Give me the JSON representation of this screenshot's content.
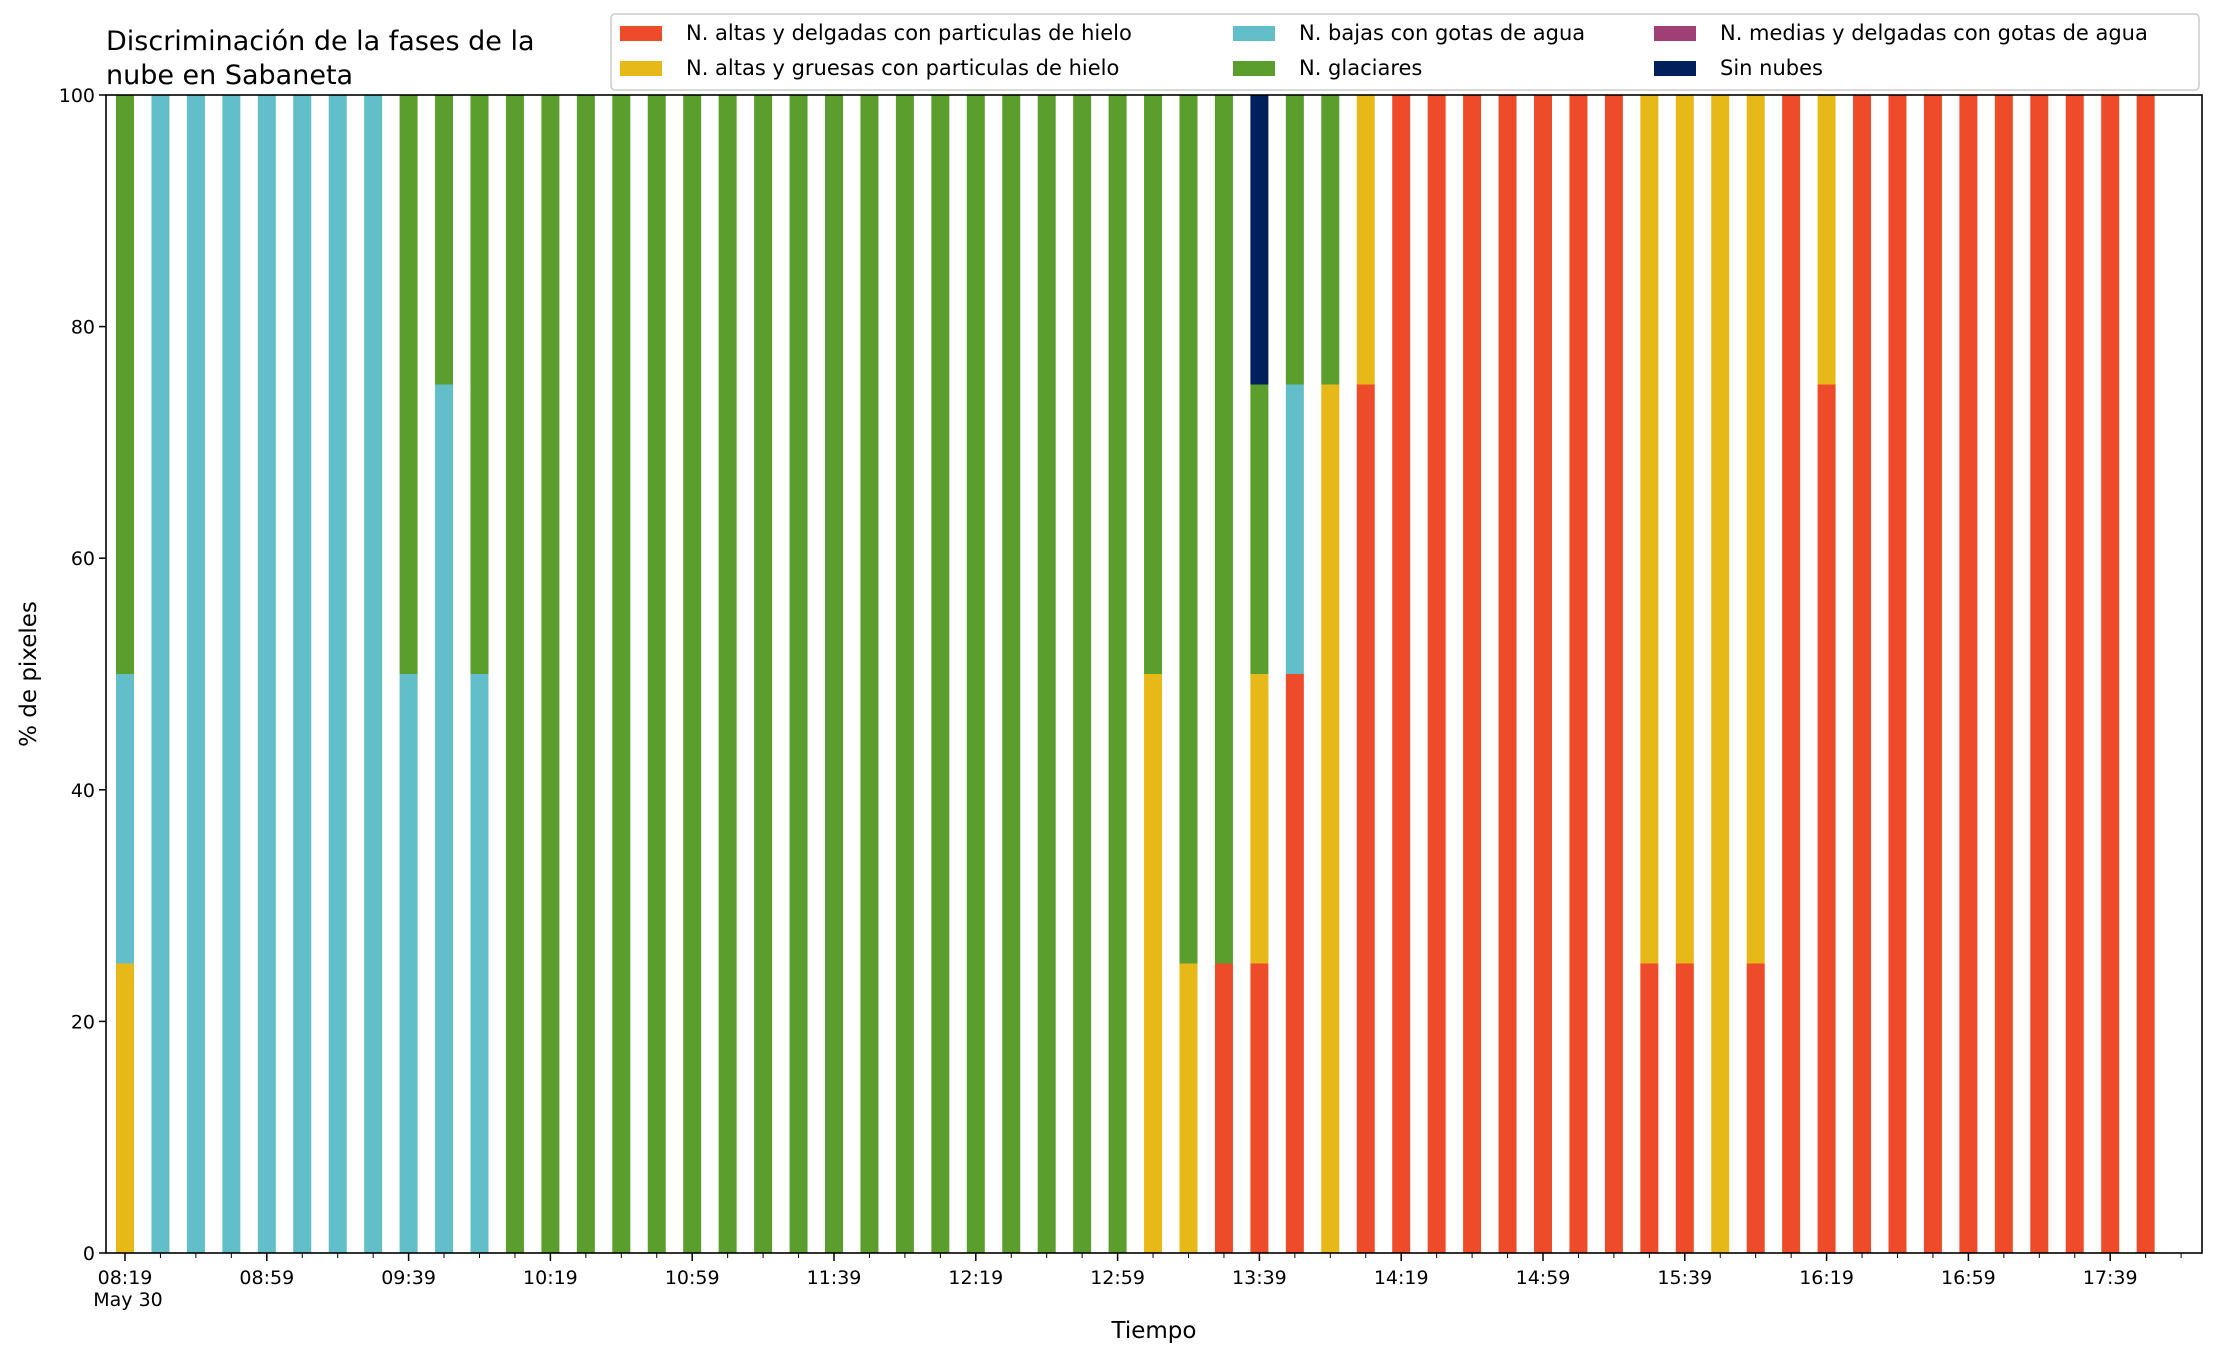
{
  "chart_data": {
    "type": "bar",
    "stacked": true,
    "title_lines": [
      "Discriminación de la fases de la",
      "nube en Sabaneta"
    ],
    "xlabel": "Tiempo",
    "ylabel": "% de pixeles",
    "ylim": [
      0,
      100
    ],
    "yticks": [
      0,
      20,
      40,
      60,
      80,
      100
    ],
    "grid": false,
    "legend_position": "top-right",
    "start_time": "08:19",
    "interval_minutes": 10,
    "x_tick_labels": [
      "08:19",
      "08:59",
      "09:39",
      "10:19",
      "10:59",
      "11:39",
      "12:19",
      "12:59",
      "13:39",
      "14:19",
      "14:59",
      "15:39",
      "16:19",
      "16:59",
      "17:39"
    ],
    "x_date_label": "May 30",
    "legend": [
      {
        "key": "alta_delgada",
        "label": "N. altas y delgadas con particulas de hielo",
        "color": "#ee4b2b"
      },
      {
        "key": "alta_gruesa",
        "label": "N. altas y gruesas con particulas de hielo",
        "color": "#e6b818"
      },
      {
        "key": "baja_agua",
        "label": "N. bajas con gotas de agua",
        "color": "#62bec8"
      },
      {
        "key": "glaciar",
        "label": "N. glaciares",
        "color": "#5c9e2e"
      },
      {
        "key": "media_agua",
        "label": "N. medias y delgadas con gotas de agua",
        "color": "#a03f76"
      },
      {
        "key": "sin_nubes",
        "label": "Sin nubes",
        "color": "#00205b"
      }
    ],
    "stack_order": [
      "alta_delgada",
      "alta_gruesa",
      "baja_agua",
      "glaciar",
      "media_agua",
      "sin_nubes"
    ],
    "bars": [
      {
        "time": "08:19",
        "alta_delgada": 0,
        "alta_gruesa": 25,
        "baja_agua": 25,
        "glaciar": 50,
        "media_agua": 0,
        "sin_nubes": 0
      },
      {
        "time": "08:29",
        "alta_delgada": 0,
        "alta_gruesa": 0,
        "baja_agua": 100,
        "glaciar": 0,
        "media_agua": 0,
        "sin_nubes": 0
      },
      {
        "time": "08:39",
        "alta_delgada": 0,
        "alta_gruesa": 0,
        "baja_agua": 100,
        "glaciar": 0,
        "media_agua": 0,
        "sin_nubes": 0
      },
      {
        "time": "08:49",
        "alta_delgada": 0,
        "alta_gruesa": 0,
        "baja_agua": 100,
        "glaciar": 0,
        "media_agua": 0,
        "sin_nubes": 0
      },
      {
        "time": "08:59",
        "alta_delgada": 0,
        "alta_gruesa": 0,
        "baja_agua": 100,
        "glaciar": 0,
        "media_agua": 0,
        "sin_nubes": 0
      },
      {
        "time": "09:09",
        "alta_delgada": 0,
        "alta_gruesa": 0,
        "baja_agua": 100,
        "glaciar": 0,
        "media_agua": 0,
        "sin_nubes": 0
      },
      {
        "time": "09:19",
        "alta_delgada": 0,
        "alta_gruesa": 0,
        "baja_agua": 100,
        "glaciar": 0,
        "media_agua": 0,
        "sin_nubes": 0
      },
      {
        "time": "09:29",
        "alta_delgada": 0,
        "alta_gruesa": 0,
        "baja_agua": 100,
        "glaciar": 0,
        "media_agua": 0,
        "sin_nubes": 0
      },
      {
        "time": "09:39",
        "alta_delgada": 0,
        "alta_gruesa": 0,
        "baja_agua": 50,
        "glaciar": 50,
        "media_agua": 0,
        "sin_nubes": 0
      },
      {
        "time": "09:49",
        "alta_delgada": 0,
        "alta_gruesa": 0,
        "baja_agua": 75,
        "glaciar": 25,
        "media_agua": 0,
        "sin_nubes": 0
      },
      {
        "time": "09:59",
        "alta_delgada": 0,
        "alta_gruesa": 0,
        "baja_agua": 50,
        "glaciar": 50,
        "media_agua": 0,
        "sin_nubes": 0
      },
      {
        "time": "10:09",
        "alta_delgada": 0,
        "alta_gruesa": 0,
        "baja_agua": 0,
        "glaciar": 100,
        "media_agua": 0,
        "sin_nubes": 0
      },
      {
        "time": "10:19",
        "alta_delgada": 0,
        "alta_gruesa": 0,
        "baja_agua": 0,
        "glaciar": 100,
        "media_agua": 0,
        "sin_nubes": 0
      },
      {
        "time": "10:29",
        "alta_delgada": 0,
        "alta_gruesa": 0,
        "baja_agua": 0,
        "glaciar": 100,
        "media_agua": 0,
        "sin_nubes": 0
      },
      {
        "time": "10:39",
        "alta_delgada": 0,
        "alta_gruesa": 0,
        "baja_agua": 0,
        "glaciar": 100,
        "media_agua": 0,
        "sin_nubes": 0
      },
      {
        "time": "10:49",
        "alta_delgada": 0,
        "alta_gruesa": 0,
        "baja_agua": 0,
        "glaciar": 100,
        "media_agua": 0,
        "sin_nubes": 0
      },
      {
        "time": "10:59",
        "alta_delgada": 0,
        "alta_gruesa": 0,
        "baja_agua": 0,
        "glaciar": 100,
        "media_agua": 0,
        "sin_nubes": 0
      },
      {
        "time": "11:09",
        "alta_delgada": 0,
        "alta_gruesa": 0,
        "baja_agua": 0,
        "glaciar": 100,
        "media_agua": 0,
        "sin_nubes": 0
      },
      {
        "time": "11:19",
        "alta_delgada": 0,
        "alta_gruesa": 0,
        "baja_agua": 0,
        "glaciar": 100,
        "media_agua": 0,
        "sin_nubes": 0
      },
      {
        "time": "11:29",
        "alta_delgada": 0,
        "alta_gruesa": 0,
        "baja_agua": 0,
        "glaciar": 100,
        "media_agua": 0,
        "sin_nubes": 0
      },
      {
        "time": "11:39",
        "alta_delgada": 0,
        "alta_gruesa": 0,
        "baja_agua": 0,
        "glaciar": 100,
        "media_agua": 0,
        "sin_nubes": 0
      },
      {
        "time": "11:49",
        "alta_delgada": 0,
        "alta_gruesa": 0,
        "baja_agua": 0,
        "glaciar": 100,
        "media_agua": 0,
        "sin_nubes": 0
      },
      {
        "time": "11:59",
        "alta_delgada": 0,
        "alta_gruesa": 0,
        "baja_agua": 0,
        "glaciar": 100,
        "media_agua": 0,
        "sin_nubes": 0
      },
      {
        "time": "12:09",
        "alta_delgada": 0,
        "alta_gruesa": 0,
        "baja_agua": 0,
        "glaciar": 100,
        "media_agua": 0,
        "sin_nubes": 0
      },
      {
        "time": "12:19",
        "alta_delgada": 0,
        "alta_gruesa": 0,
        "baja_agua": 0,
        "glaciar": 100,
        "media_agua": 0,
        "sin_nubes": 0
      },
      {
        "time": "12:29",
        "alta_delgada": 0,
        "alta_gruesa": 0,
        "baja_agua": 0,
        "glaciar": 100,
        "media_agua": 0,
        "sin_nubes": 0
      },
      {
        "time": "12:39",
        "alta_delgada": 0,
        "alta_gruesa": 0,
        "baja_agua": 0,
        "glaciar": 100,
        "media_agua": 0,
        "sin_nubes": 0
      },
      {
        "time": "12:49",
        "alta_delgada": 0,
        "alta_gruesa": 0,
        "baja_agua": 0,
        "glaciar": 100,
        "media_agua": 0,
        "sin_nubes": 0
      },
      {
        "time": "12:59",
        "alta_delgada": 0,
        "alta_gruesa": 0,
        "baja_agua": 0,
        "glaciar": 100,
        "media_agua": 0,
        "sin_nubes": 0
      },
      {
        "time": "13:09",
        "alta_delgada": 0,
        "alta_gruesa": 50,
        "baja_agua": 0,
        "glaciar": 50,
        "media_agua": 0,
        "sin_nubes": 0
      },
      {
        "time": "13:19",
        "alta_delgada": 0,
        "alta_gruesa": 25,
        "baja_agua": 0,
        "glaciar": 75,
        "media_agua": 0,
        "sin_nubes": 0
      },
      {
        "time": "13:29",
        "alta_delgada": 25,
        "alta_gruesa": 0,
        "baja_agua": 0,
        "glaciar": 75,
        "media_agua": 0,
        "sin_nubes": 0
      },
      {
        "time": "13:39",
        "alta_delgada": 25,
        "alta_gruesa": 25,
        "baja_agua": 0,
        "glaciar": 25,
        "media_agua": 0,
        "sin_nubes": 25
      },
      {
        "time": "13:49",
        "alta_delgada": 50,
        "alta_gruesa": 0,
        "baja_agua": 25,
        "glaciar": 25,
        "media_agua": 0,
        "sin_nubes": 0
      },
      {
        "time": "13:59",
        "alta_delgada": 0,
        "alta_gruesa": 75,
        "baja_agua": 0,
        "glaciar": 25,
        "media_agua": 0,
        "sin_nubes": 0
      },
      {
        "time": "14:09",
        "alta_delgada": 75,
        "alta_gruesa": 25,
        "baja_agua": 0,
        "glaciar": 0,
        "media_agua": 0,
        "sin_nubes": 0
      },
      {
        "time": "14:19",
        "alta_delgada": 100,
        "alta_gruesa": 0,
        "baja_agua": 0,
        "glaciar": 0,
        "media_agua": 0,
        "sin_nubes": 0
      },
      {
        "time": "14:29",
        "alta_delgada": 100,
        "alta_gruesa": 0,
        "baja_agua": 0,
        "glaciar": 0,
        "media_agua": 0,
        "sin_nubes": 0
      },
      {
        "time": "14:39",
        "alta_delgada": 100,
        "alta_gruesa": 0,
        "baja_agua": 0,
        "glaciar": 0,
        "media_agua": 0,
        "sin_nubes": 0
      },
      {
        "time": "14:49",
        "alta_delgada": 100,
        "alta_gruesa": 0,
        "baja_agua": 0,
        "glaciar": 0,
        "media_agua": 0,
        "sin_nubes": 0
      },
      {
        "time": "14:59",
        "alta_delgada": 100,
        "alta_gruesa": 0,
        "baja_agua": 0,
        "glaciar": 0,
        "media_agua": 0,
        "sin_nubes": 0
      },
      {
        "time": "15:09",
        "alta_delgada": 100,
        "alta_gruesa": 0,
        "baja_agua": 0,
        "glaciar": 0,
        "media_agua": 0,
        "sin_nubes": 0
      },
      {
        "time": "15:19",
        "alta_delgada": 100,
        "alta_gruesa": 0,
        "baja_agua": 0,
        "glaciar": 0,
        "media_agua": 0,
        "sin_nubes": 0
      },
      {
        "time": "15:29",
        "alta_delgada": 25,
        "alta_gruesa": 75,
        "baja_agua": 0,
        "glaciar": 0,
        "media_agua": 0,
        "sin_nubes": 0
      },
      {
        "time": "15:39",
        "alta_delgada": 25,
        "alta_gruesa": 75,
        "baja_agua": 0,
        "glaciar": 0,
        "media_agua": 0,
        "sin_nubes": 0
      },
      {
        "time": "15:49",
        "alta_delgada": 0,
        "alta_gruesa": 100,
        "baja_agua": 0,
        "glaciar": 0,
        "media_agua": 0,
        "sin_nubes": 0
      },
      {
        "time": "15:59",
        "alta_delgada": 25,
        "alta_gruesa": 75,
        "baja_agua": 0,
        "glaciar": 0,
        "media_agua": 0,
        "sin_nubes": 0
      },
      {
        "time": "16:09",
        "alta_delgada": 100,
        "alta_gruesa": 0,
        "baja_agua": 0,
        "glaciar": 0,
        "media_agua": 0,
        "sin_nubes": 0
      },
      {
        "time": "16:19",
        "alta_delgada": 75,
        "alta_gruesa": 25,
        "baja_agua": 0,
        "glaciar": 0,
        "media_agua": 0,
        "sin_nubes": 0
      },
      {
        "time": "16:29",
        "alta_delgada": 100,
        "alta_gruesa": 0,
        "baja_agua": 0,
        "glaciar": 0,
        "media_agua": 0,
        "sin_nubes": 0
      },
      {
        "time": "16:39",
        "alta_delgada": 100,
        "alta_gruesa": 0,
        "baja_agua": 0,
        "glaciar": 0,
        "media_agua": 0,
        "sin_nubes": 0
      },
      {
        "time": "16:49",
        "alta_delgada": 100,
        "alta_gruesa": 0,
        "baja_agua": 0,
        "glaciar": 0,
        "media_agua": 0,
        "sin_nubes": 0
      },
      {
        "time": "16:59",
        "alta_delgada": 100,
        "alta_gruesa": 0,
        "baja_agua": 0,
        "glaciar": 0,
        "media_agua": 0,
        "sin_nubes": 0
      },
      {
        "time": "17:09",
        "alta_delgada": 100,
        "alta_gruesa": 0,
        "baja_agua": 0,
        "glaciar": 0,
        "media_agua": 0,
        "sin_nubes": 0
      },
      {
        "time": "17:19",
        "alta_delgada": 100,
        "alta_gruesa": 0,
        "baja_agua": 0,
        "glaciar": 0,
        "media_agua": 0,
        "sin_nubes": 0
      },
      {
        "time": "17:29",
        "alta_delgada": 100,
        "alta_gruesa": 0,
        "baja_agua": 0,
        "glaciar": 0,
        "media_agua": 0,
        "sin_nubes": 0
      },
      {
        "time": "17:39",
        "alta_delgada": 100,
        "alta_gruesa": 0,
        "baja_agua": 0,
        "glaciar": 0,
        "media_agua": 0,
        "sin_nubes": 0
      },
      {
        "time": "17:49",
        "alta_delgada": 100,
        "alta_gruesa": 0,
        "baja_agua": 0,
        "glaciar": 0,
        "media_agua": 0,
        "sin_nubes": 0
      }
    ]
  }
}
